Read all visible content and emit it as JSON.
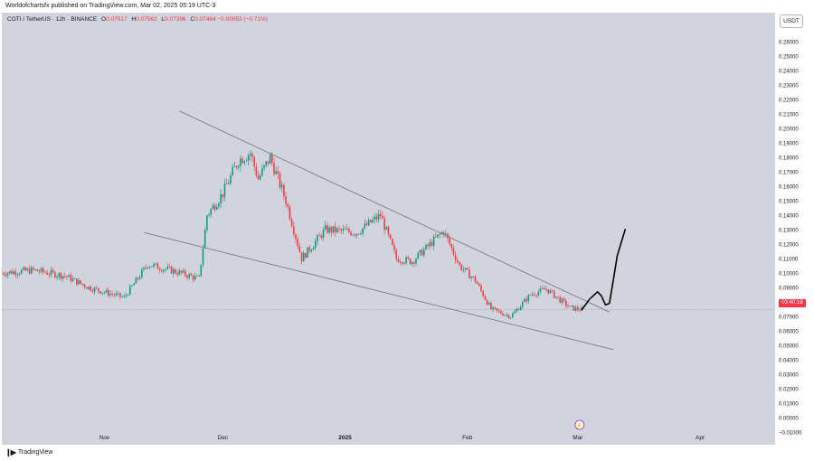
{
  "header": {
    "publisher": "Worldofchartsfx published on TradingView.com, Mar 02, 2025 05:19 UTC-3"
  },
  "legend": {
    "symbol": "COTI / TetherUS · 12h · BINANCE",
    "open_label": "O",
    "open": "0.07517",
    "high_label": "H",
    "high": "0.07562",
    "low_label": "L",
    "low": "0.07396",
    "close_label": "C",
    "close": "0.07464",
    "change": "−0.00053 (−0.71%)"
  },
  "price_axis": {
    "currency_button": "USDT",
    "last_price_tag": "03:40:18",
    "ticks": [
      "0.26000",
      "0.25000",
      "0.24000",
      "0.23000",
      "0.22000",
      "0.21000",
      "0.20000",
      "0.19000",
      "0.18000",
      "0.17000",
      "0.16000",
      "0.15000",
      "0.14000",
      "0.13000",
      "0.12000",
      "0.11000",
      "0.10000",
      "0.09000",
      "0.08000",
      "0.07000",
      "0.06000",
      "0.05000",
      "0.04000",
      "0.03000",
      "0.02000",
      "0.01000",
      "0.00000",
      "−0.01000"
    ]
  },
  "time_axis": {
    "labels": [
      "Nov",
      "Dec",
      "2025",
      "Feb",
      "Mar",
      "Apr"
    ]
  },
  "footer": {
    "brand": "TradingView"
  },
  "colors": {
    "up": "#089981",
    "down": "#f23645",
    "background": "#d1d4dc",
    "trendline": "#787b86",
    "projection": "#000000"
  },
  "chart_data": {
    "type": "candlestick",
    "symbol": "COTI / TetherUS",
    "interval": "12h",
    "exchange": "BINANCE",
    "ylim": [
      -0.01,
      0.265
    ],
    "x_range": [
      "2024-10-06",
      "2025-04-20"
    ],
    "last_price": 0.07464,
    "ohlc_last": {
      "open": 0.07517,
      "high": 0.07562,
      "low": 0.07396,
      "close": 0.07464
    },
    "close_path": [
      [
        "2024-10-06",
        0.1
      ],
      [
        "2024-10-14",
        0.102
      ],
      [
        "2024-10-22",
        0.098
      ],
      [
        "2024-10-28",
        0.09
      ],
      [
        "2024-11-06",
        0.083
      ],
      [
        "2024-11-12",
        0.106
      ],
      [
        "2024-11-19",
        0.101
      ],
      [
        "2024-11-25",
        0.096
      ],
      [
        "2024-11-27",
        0.14
      ],
      [
        "2024-12-01",
        0.155
      ],
      [
        "2024-12-05",
        0.178
      ],
      [
        "2024-12-08",
        0.183
      ],
      [
        "2024-12-10",
        0.165
      ],
      [
        "2024-12-13",
        0.18
      ],
      [
        "2024-12-17",
        0.15
      ],
      [
        "2024-12-21",
        0.11
      ],
      [
        "2024-12-27",
        0.13
      ],
      [
        "2025-01-04",
        0.128
      ],
      [
        "2025-01-10",
        0.14
      ],
      [
        "2025-01-14",
        0.11
      ],
      [
        "2025-01-18",
        0.108
      ],
      [
        "2025-01-26",
        0.129
      ],
      [
        "2025-01-30",
        0.105
      ],
      [
        "2025-02-03",
        0.095
      ],
      [
        "2025-02-07",
        0.075
      ],
      [
        "2025-02-12",
        0.07
      ],
      [
        "2025-02-17",
        0.085
      ],
      [
        "2025-02-21",
        0.089
      ],
      [
        "2025-02-27",
        0.076
      ],
      [
        "2025-03-02",
        0.0746
      ]
    ],
    "trendlines": [
      {
        "name": "",
        "from": [
          "2024-11-20",
          0.212
        ],
        "to": [
          "2025-03-09",
          0.073
        ]
      },
      {
        "name": "",
        "from": [
          "2024-11-11",
          0.128
        ],
        "to": [
          "2025-03-10",
          0.047
        ]
      }
    ],
    "projection": [
      [
        "2025-03-02",
        0.0746
      ],
      [
        "2025-03-04",
        0.082
      ],
      [
        "2025-03-06",
        0.087
      ],
      [
        "2025-03-07",
        0.084
      ],
      [
        "2025-03-08",
        0.078
      ],
      [
        "2025-03-09",
        0.079
      ],
      [
        "2025-03-10",
        0.095
      ],
      [
        "2025-03-11",
        0.112
      ],
      [
        "2025-03-13",
        0.13
      ]
    ],
    "grid": false,
    "legend_position": "top-left"
  }
}
